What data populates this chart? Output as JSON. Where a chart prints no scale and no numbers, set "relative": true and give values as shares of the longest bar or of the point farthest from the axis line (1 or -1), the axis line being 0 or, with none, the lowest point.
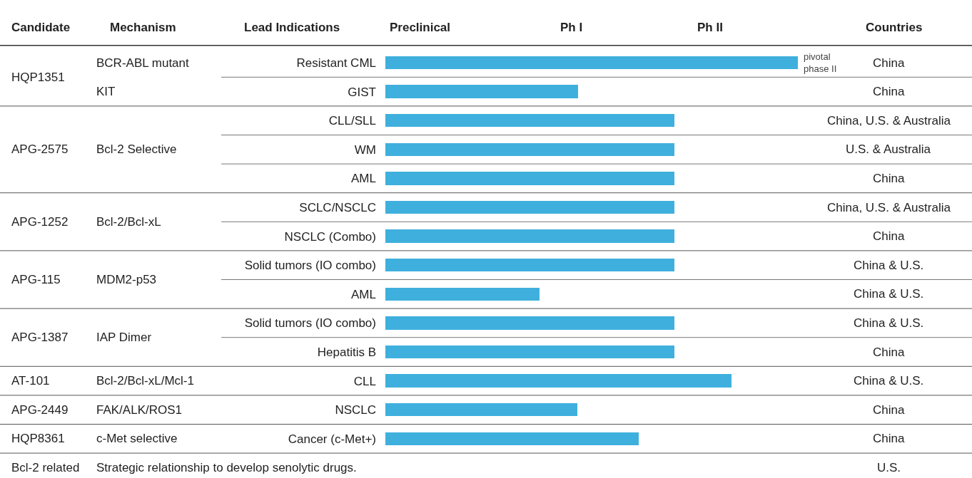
{
  "chart_data": {
    "type": "bar",
    "orientation": "horizontal",
    "relative": true,
    "categories": [
      "Resistant CML",
      "GIST",
      "CLL/SLL",
      "WM",
      "AML",
      "SCLC/NSCLC",
      "NSCLC (Combo)",
      "Solid tumors (IO combo)",
      "AML",
      "Solid tumors (IO combo)",
      "Hepatitis B",
      "CLL",
      "NSCLC",
      "Cancer (c-Met+)"
    ],
    "values": [
      1,
      0.467,
      0.7,
      0.7,
      0.7,
      0.7,
      0.7,
      0.7,
      0.374,
      0.7,
      0.7,
      0.839,
      0.465,
      0.614
    ],
    "color": "#3fb0dd",
    "annotations": [
      "Candidate",
      "Mechanism",
      "Lead Indications",
      "Preclinical",
      "Ph I",
      "Ph II",
      "Countries",
      "HQP1351",
      "BCR-ABL mutant",
      "KIT",
      "APG-2575",
      "Bcl-2 Selective",
      "APG-1252",
      "Bcl-2/Bcl-xL",
      "APG-115",
      "MDM2-p53",
      "APG-1387",
      "IAP Dimer",
      "AT-101",
      "Bcl-2/Bcl-xL/Mcl-1",
      "APG-2449",
      "FAK/ALK/ROS1",
      "HQP8361",
      "c-Met selective",
      "Bcl-2 related",
      "Strategic relationship to develop senolytic drugs.",
      "China",
      "China",
      "China, U.S. & Australia",
      "U.S. & Australia",
      "China",
      "China, U.S. & Australia",
      "China",
      "China & U.S.",
      "China & U.S.",
      "China & U.S.",
      "China",
      "China & U.S.",
      "China",
      "China",
      "U.S.",
      {
        "text": "pivotal\nphase II",
        "x": 1,
        "y": "Resistant CML"
      }
    ]
  }
}
